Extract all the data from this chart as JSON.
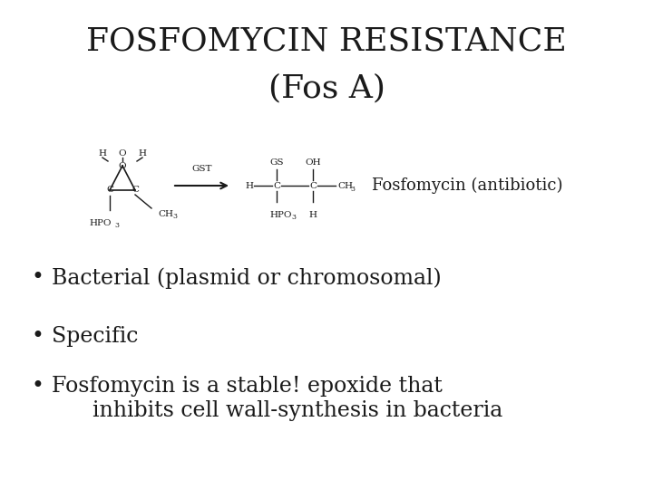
{
  "title_line1": "FOSFOMYCIN RESISTANCE",
  "title_line2": "(Fos A)",
  "title_fontsize": 26,
  "title_fontfamily": "serif",
  "background_color": "#ffffff",
  "text_color": "#1a1a1a",
  "bullet_points": [
    "Bacterial (plasmid or chromosomal)",
    "Specific",
    "Fosfomycin is a stable! epoxide that\n      inhibits cell wall-synthesis in bacteria"
  ],
  "bullet_fontsize": 17,
  "reaction_label": "Fosfomycin (antibiotic)",
  "reaction_label_fontsize": 13,
  "chem_fontsize": 7.5,
  "chem_fontsize_sub": 5.5
}
